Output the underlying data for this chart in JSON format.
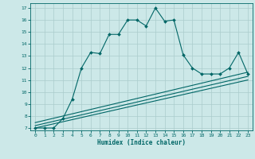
{
  "title": "",
  "xlabel": "Humidex (Indice chaleur)",
  "bg_color": "#cce8e8",
  "grid_color": "#aacccc",
  "line_color": "#006666",
  "xlim": [
    -0.5,
    23.5
  ],
  "ylim": [
    6.8,
    17.4
  ],
  "xticks": [
    0,
    1,
    2,
    3,
    4,
    5,
    6,
    7,
    8,
    9,
    10,
    11,
    12,
    13,
    14,
    15,
    16,
    17,
    18,
    19,
    20,
    21,
    22,
    23
  ],
  "yticks": [
    7,
    8,
    9,
    10,
    11,
    12,
    13,
    14,
    15,
    16,
    17
  ],
  "main_curve_x": [
    0,
    1,
    2,
    3,
    4,
    5,
    6,
    7,
    8,
    9,
    10,
    11,
    12,
    13,
    14,
    15,
    16,
    17,
    18,
    19,
    20,
    21,
    22,
    23
  ],
  "main_curve_y": [
    7,
    7,
    7,
    7.8,
    9.4,
    12.0,
    13.3,
    13.2,
    14.8,
    14.8,
    16.0,
    16.0,
    15.5,
    17.0,
    15.9,
    16.0,
    13.1,
    12.0,
    11.5,
    11.5,
    11.5,
    12.0,
    13.3,
    11.5
  ],
  "ref_line1_x": [
    0,
    23
  ],
  "ref_line1_y": [
    7.0,
    11.0
  ],
  "ref_line2_x": [
    0,
    23
  ],
  "ref_line2_y": [
    7.2,
    11.3
  ],
  "ref_line3_x": [
    0,
    23
  ],
  "ref_line3_y": [
    7.45,
    11.65
  ]
}
